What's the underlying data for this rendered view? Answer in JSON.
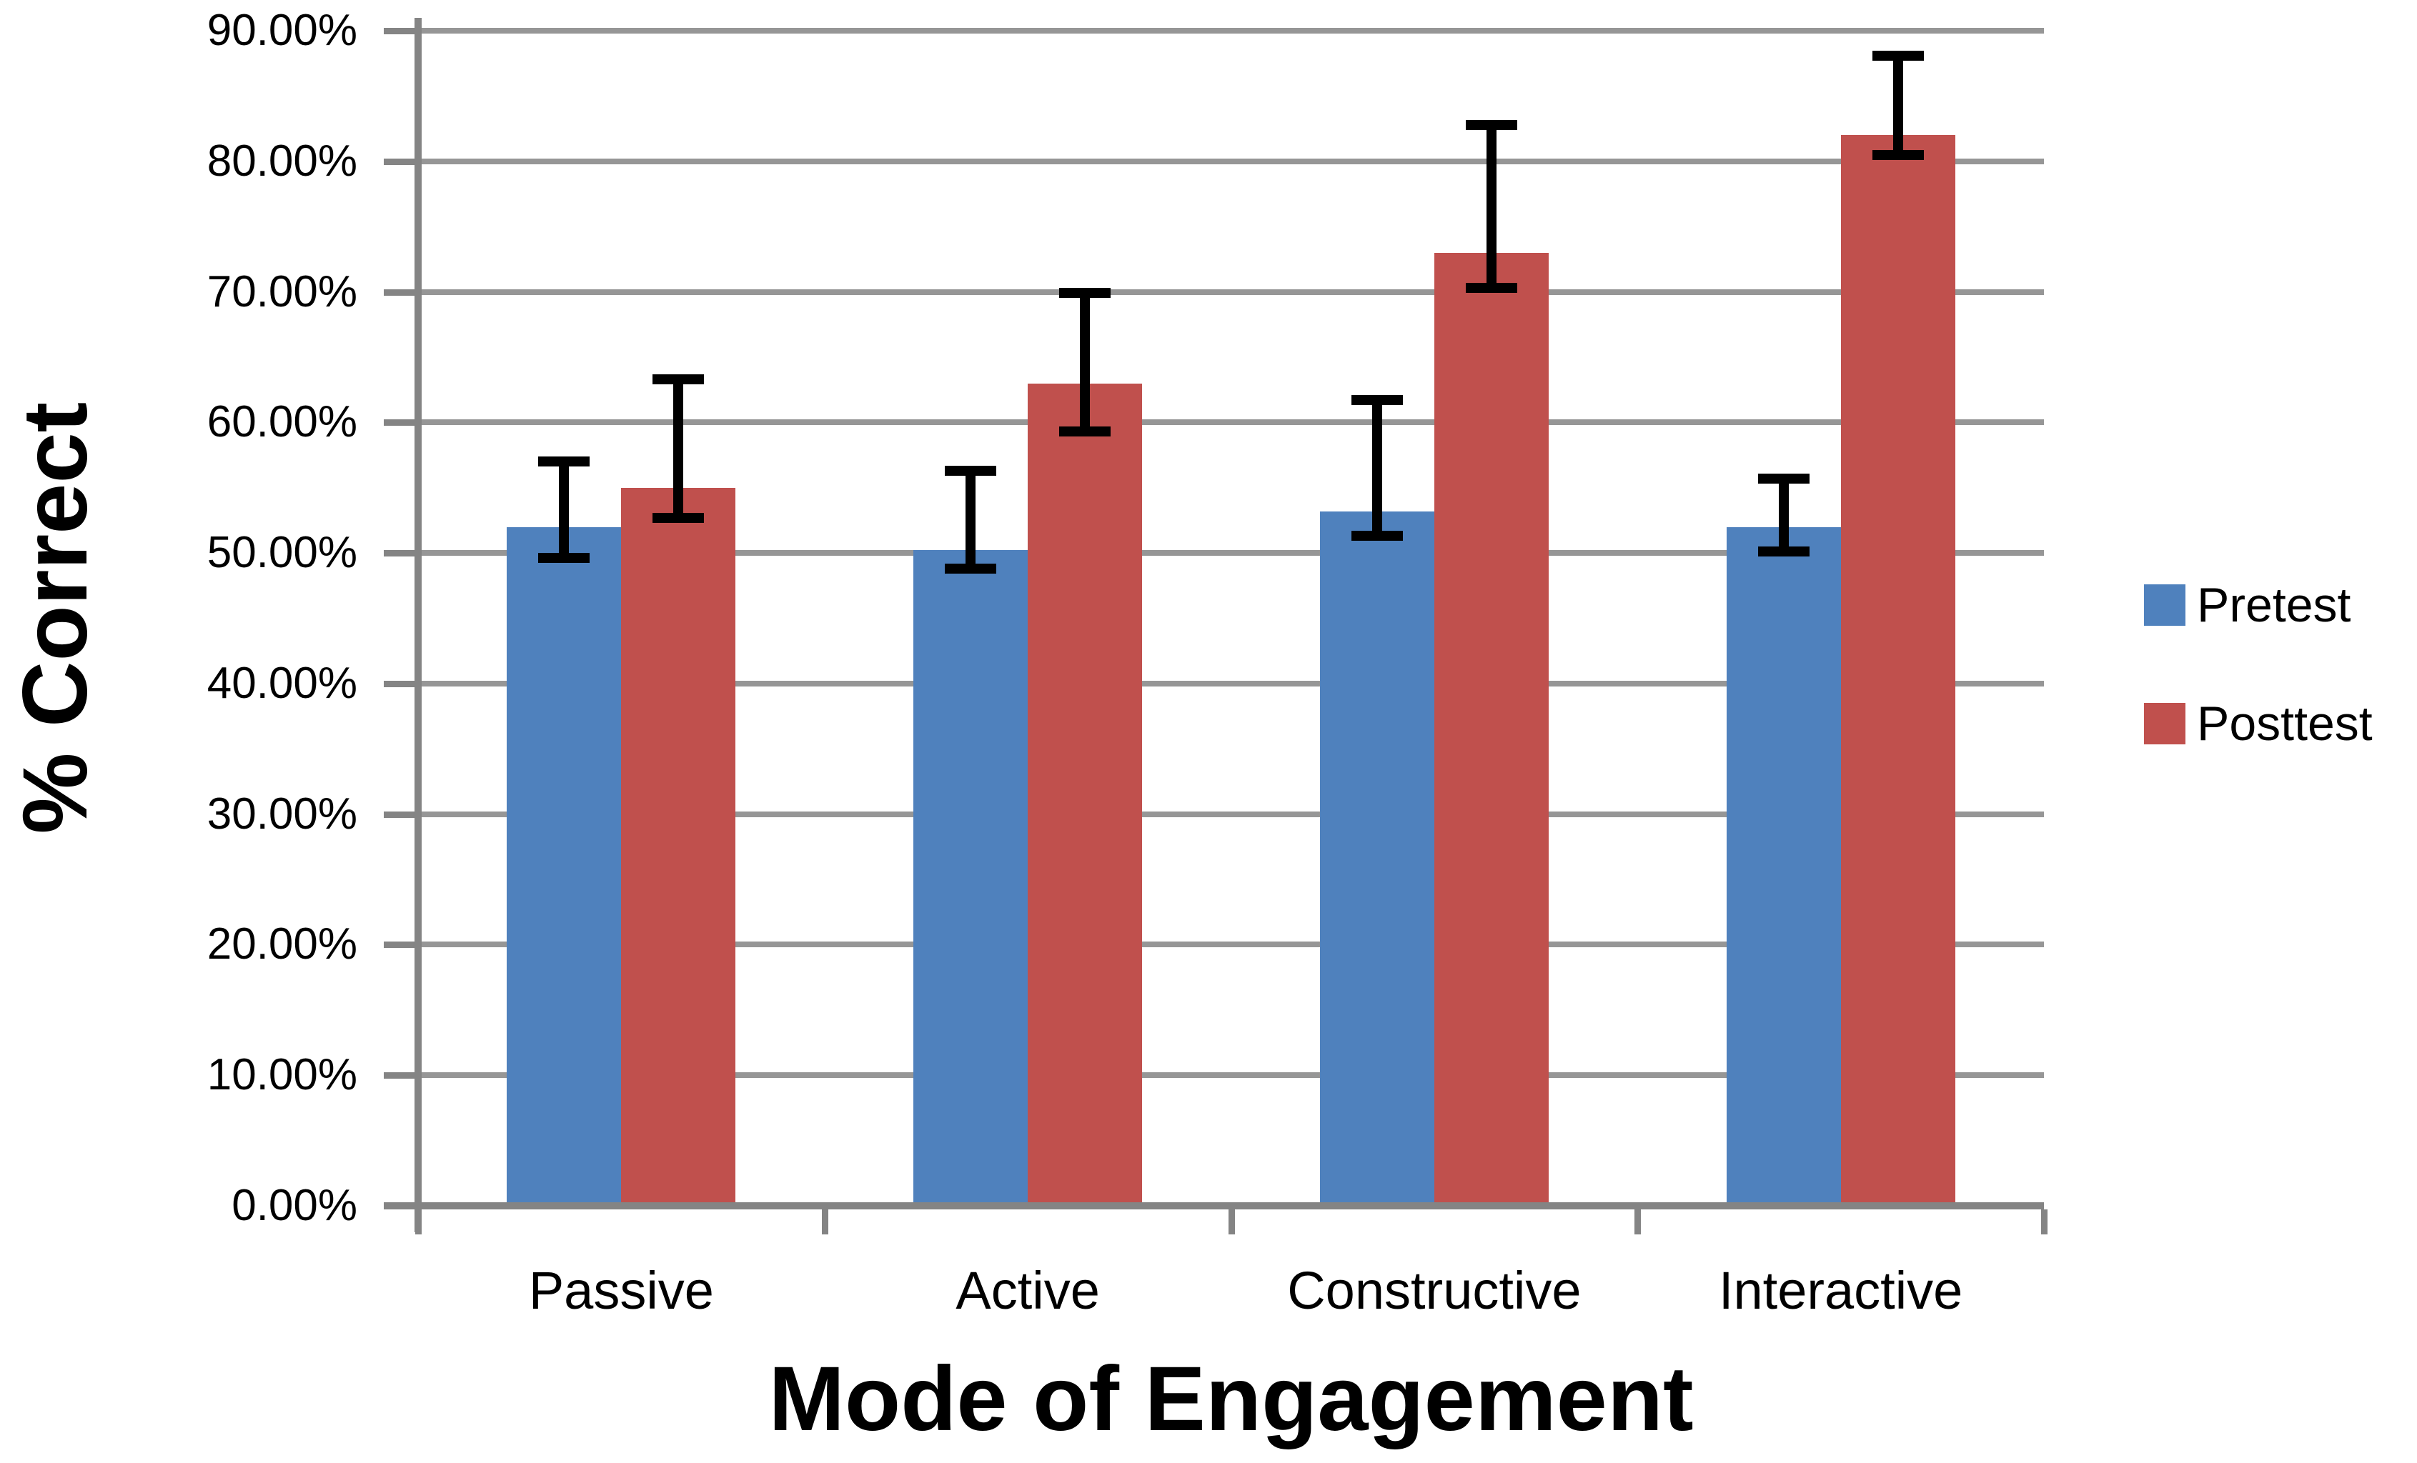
{
  "chart_data": {
    "type": "bar",
    "title": "",
    "xlabel": "Mode of Engagement",
    "ylabel": "% Correct",
    "categories": [
      "Passive",
      "Active",
      "Constructive",
      "Interactive"
    ],
    "series": [
      {
        "name": "Pretest",
        "color": "#4F81BD",
        "values": [
          52.0,
          50.2,
          53.2,
          52.0
        ],
        "error_high": [
          57.0,
          56.3,
          61.7,
          55.7
        ],
        "error_low": [
          49.6,
          48.8,
          51.3,
          50.1
        ]
      },
      {
        "name": "Posttest",
        "color": "#C0504D",
        "values": [
          55.0,
          63.0,
          73.0,
          82.0
        ],
        "error_high": [
          63.3,
          69.9,
          82.8,
          88.1
        ],
        "error_low": [
          52.7,
          59.3,
          70.3,
          80.5
        ]
      }
    ],
    "y_axis": {
      "min": 0,
      "max": 90,
      "step": 10,
      "tick_labels": [
        "0.00%",
        "10.00%",
        "20.00%",
        "30.00%",
        "40.00%",
        "50.00%",
        "60.00%",
        "70.00%",
        "80.00%",
        "90.00%"
      ]
    },
    "grid": true,
    "legend_position": "right",
    "error_bar_color": "#000000",
    "gridline_color": "#969696",
    "axis_color": "#848484",
    "text_color": "#000000"
  }
}
